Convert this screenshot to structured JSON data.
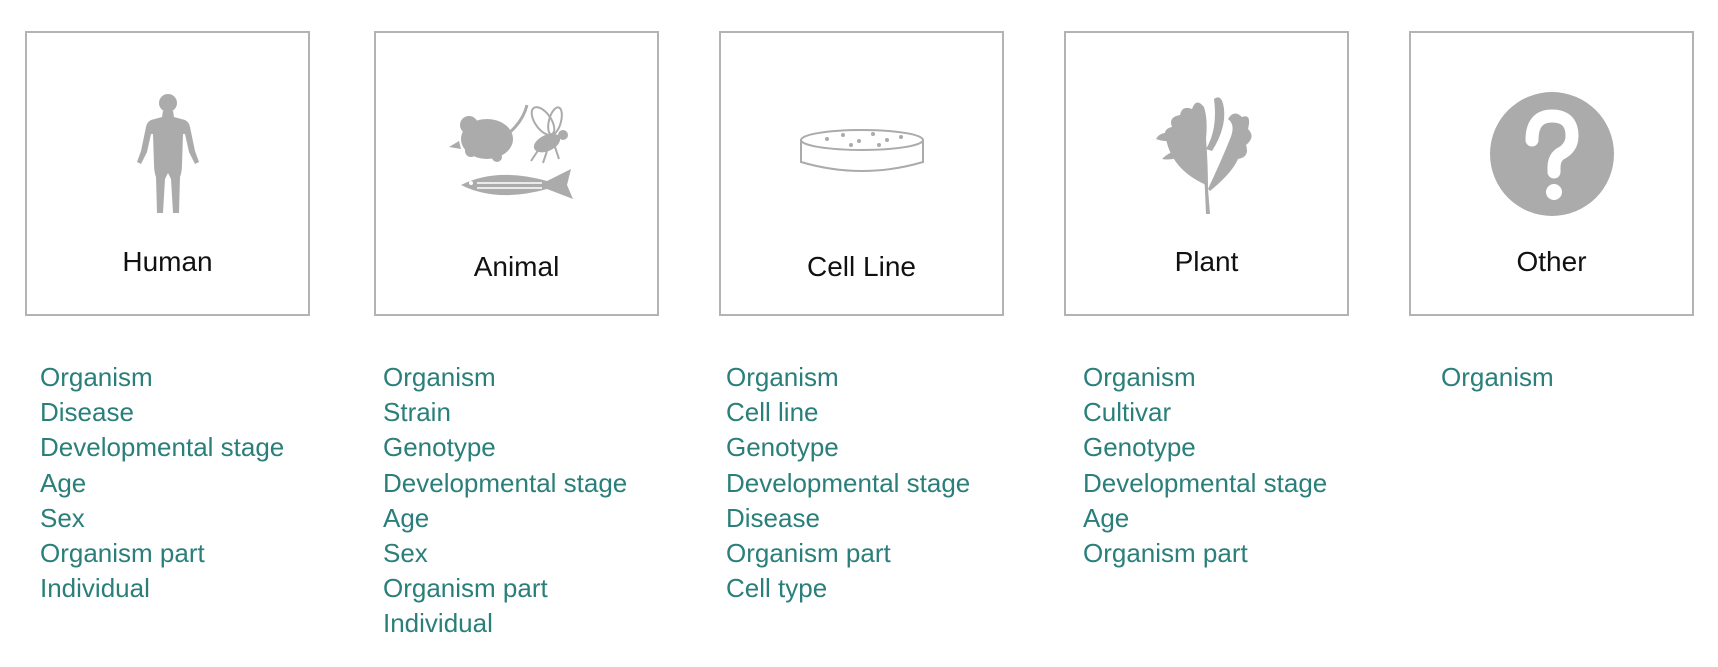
{
  "colors": {
    "link": "#2a7f7a",
    "icon_gray": "#ababab",
    "card_border": "#b3b3b3"
  },
  "cards": [
    {
      "key": "human",
      "title": "Human",
      "icon": "human-figure-icon",
      "attributes": [
        "Organism",
        "Disease",
        "Developmental stage",
        "Age",
        "Sex",
        "Organism part",
        "Individual"
      ]
    },
    {
      "key": "animal",
      "title": "Animal",
      "icon": "animal-icon",
      "attributes": [
        "Organism",
        "Strain",
        "Genotype",
        "Developmental stage",
        "Age",
        "Sex",
        "Organism part",
        "Individual"
      ]
    },
    {
      "key": "cell-line",
      "title": "Cell Line",
      "icon": "petri-dish-icon",
      "attributes": [
        "Organism",
        "Cell line",
        "Genotype",
        "Developmental stage",
        "Disease",
        "Organism part",
        "Cell type"
      ]
    },
    {
      "key": "plant",
      "title": "Plant",
      "icon": "plant-leaf-icon",
      "attributes": [
        "Organism",
        "Cultivar",
        "Genotype",
        "Developmental stage",
        "Age",
        "Organism part"
      ]
    },
    {
      "key": "other",
      "title": "Other",
      "icon": "question-mark-icon",
      "attributes": [
        "Organism"
      ]
    }
  ]
}
